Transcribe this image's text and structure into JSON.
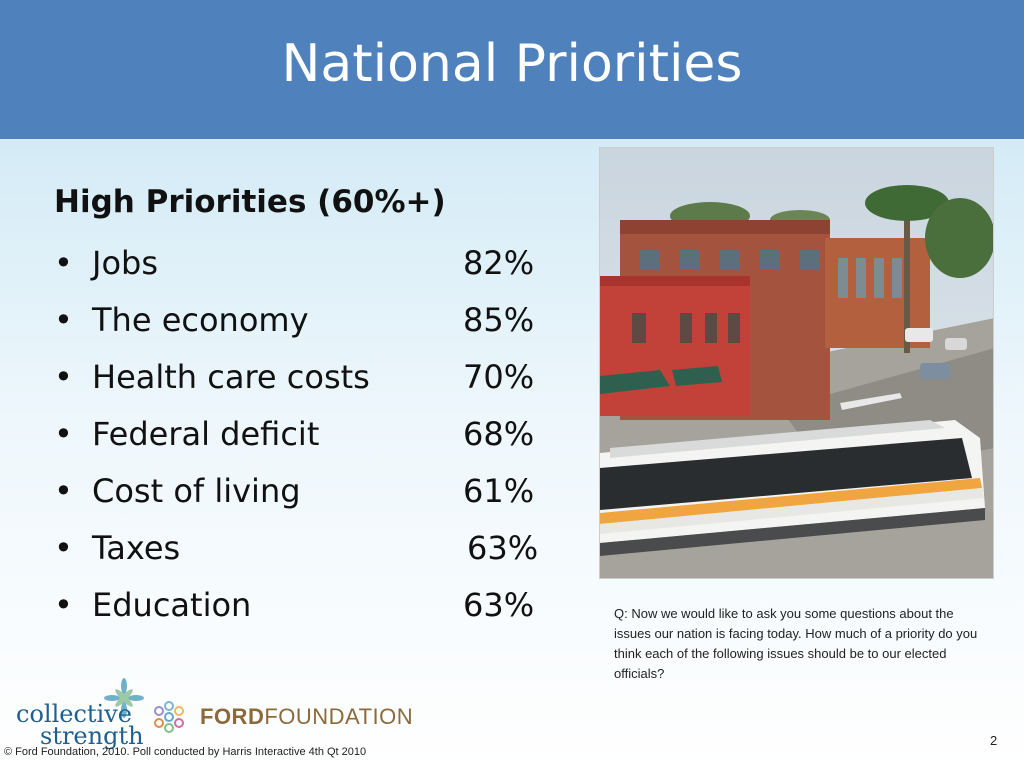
{
  "slide": {
    "title": "National Priorities",
    "heading": "High Priorities (60%+)",
    "bullet_char": "•",
    "items": [
      {
        "label": "Jobs",
        "value": "82%"
      },
      {
        "label": "The economy",
        "value": "85%"
      },
      {
        "label": "Health care costs",
        "value": "70%"
      },
      {
        "label": "Federal deficit",
        "value": "68%"
      },
      {
        "label": "Cost of living",
        "value": "61%"
      },
      {
        "label": "Taxes",
        "value": "63%"
      },
      {
        "label": "Education",
        "value": "63%"
      }
    ],
    "question": "Q: Now we would like to ask you some questions about the issues our nation is facing today. How much of a priority do you think each of the following issues should be to our elected officials?",
    "page_number": "2",
    "footer": "© Ford Foundation, 2010. Poll conducted by Harris Interactive 4th Qt 2010"
  },
  "logos": {
    "collective_line1": "collective",
    "collective_line2": "strength",
    "ford_bold": "FORD",
    "ford_light": "FOUNDATION"
  },
  "colors": {
    "header": "#4f81bd",
    "ford": "#8b6a3c",
    "collective": "#1f5f8f"
  }
}
